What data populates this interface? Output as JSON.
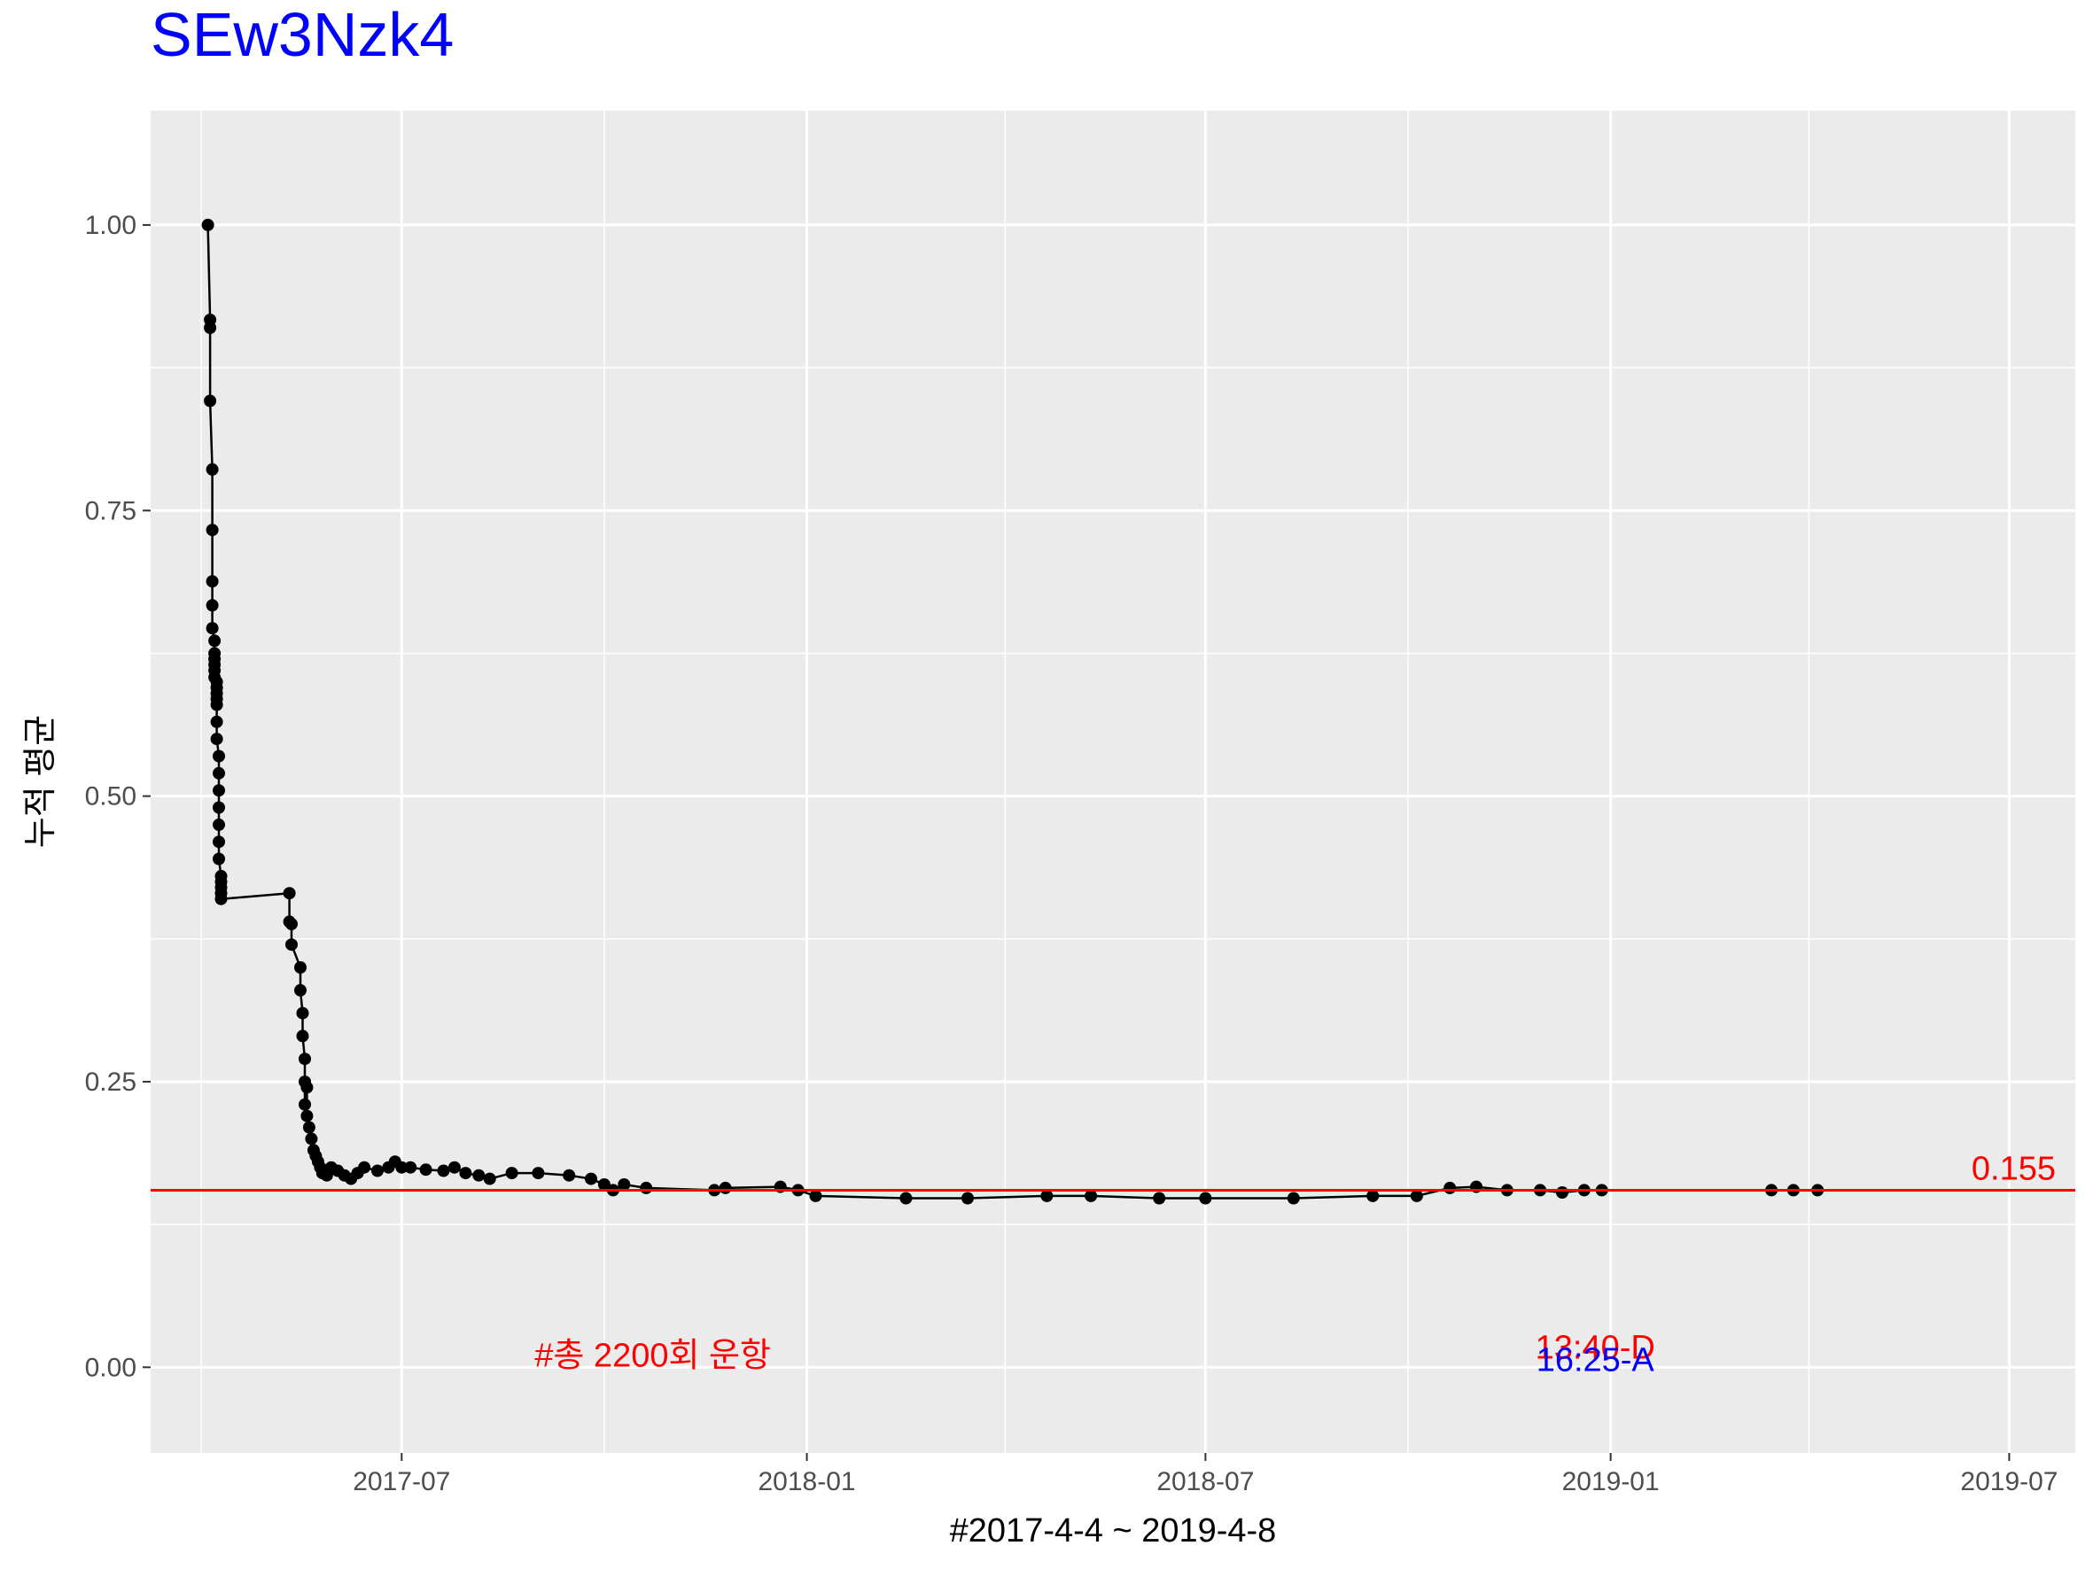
{
  "chart_data": {
    "type": "line",
    "title": "SEw3Nzk4",
    "title_color": "#0000FF",
    "xlabel": "#2017-4-4 ~ 2019-4-8",
    "ylabel": "누적 평균",
    "xlim": [
      "2017-03-09",
      "2019-07-31"
    ],
    "ylim": [
      -0.075,
      1.1
    ],
    "x_ticks": [
      {
        "date": "2017-07-01",
        "label": "2017-07"
      },
      {
        "date": "2018-01-01",
        "label": "2018-01"
      },
      {
        "date": "2018-07-01",
        "label": "2018-07"
      },
      {
        "date": "2019-01-01",
        "label": "2019-01"
      },
      {
        "date": "2019-07-01",
        "label": "2019-07"
      }
    ],
    "x_minor_ticks": [
      "2017-04-01",
      "2017-10-01",
      "2018-04-01",
      "2018-10-01",
      "2019-04-01"
    ],
    "y_ticks": [
      {
        "value": 0,
        "label": "0.00"
      },
      {
        "value": 0.25,
        "label": "0.25"
      },
      {
        "value": 0.5,
        "label": "0.50"
      },
      {
        "value": 0.75,
        "label": "0.75"
      },
      {
        "value": 1.0,
        "label": "1.00"
      }
    ],
    "y_minor_ticks": [
      0.125,
      0.375,
      0.625,
      0.875
    ],
    "grid": true,
    "line_color": "#000000",
    "point_color": "#000000",
    "reference_line": {
      "value": 0.155,
      "label": "0.155",
      "color": "#FF0000"
    },
    "series": [
      {
        "x": [
          "2017-04-04",
          "2017-04-05",
          "2017-04-05",
          "2017-04-05",
          "2017-04-06",
          "2017-04-06",
          "2017-04-06",
          "2017-04-06",
          "2017-04-06",
          "2017-04-07",
          "2017-04-07",
          "2017-04-07",
          "2017-04-07",
          "2017-04-07",
          "2017-04-07",
          "2017-04-08",
          "2017-04-08",
          "2017-04-08",
          "2017-04-08",
          "2017-04-08",
          "2017-04-08",
          "2017-04-08",
          "2017-04-09",
          "2017-04-09",
          "2017-04-09",
          "2017-04-09",
          "2017-04-09",
          "2017-04-09",
          "2017-04-09",
          "2017-04-10",
          "2017-04-10",
          "2017-04-10",
          "2017-04-10",
          "2017-04-10",
          "2017-05-11",
          "2017-05-11",
          "2017-05-12",
          "2017-05-12",
          "2017-05-16",
          "2017-05-16",
          "2017-05-17",
          "2017-05-17",
          "2017-05-18",
          "2017-05-18",
          "2017-05-18",
          "2017-05-19",
          "2017-05-19",
          "2017-05-20",
          "2017-05-21",
          "2017-05-22",
          "2017-05-23",
          "2017-05-24",
          "2017-05-25",
          "2017-05-26",
          "2017-05-28",
          "2017-05-30",
          "2017-06-02",
          "2017-06-05",
          "2017-06-08",
          "2017-06-11",
          "2017-06-14",
          "2017-06-20",
          "2017-06-25",
          "2017-06-28",
          "2017-07-01",
          "2017-07-05",
          "2017-07-12",
          "2017-07-20",
          "2017-07-25",
          "2017-07-30",
          "2017-08-05",
          "2017-08-10",
          "2017-08-20",
          "2017-09-01",
          "2017-09-15",
          "2017-09-25",
          "2017-10-01",
          "2017-10-05",
          "2017-10-10",
          "2017-10-20",
          "2017-11-20",
          "2017-11-25",
          "2017-12-20",
          "2017-12-28",
          "2018-01-05",
          "2018-02-15",
          "2018-03-15",
          "2018-04-20",
          "2018-05-10",
          "2018-06-10",
          "2018-07-01",
          "2018-08-10",
          "2018-09-15",
          "2018-10-05",
          "2018-10-20",
          "2018-11-01",
          "2018-11-15",
          "2018-11-30",
          "2018-12-10",
          "2018-12-20",
          "2018-12-28",
          "2019-03-15",
          "2019-03-25",
          "2019-04-05"
        ],
        "y": [
          1.0,
          0.917,
          0.91,
          0.846,
          0.786,
          0.733,
          0.688,
          0.667,
          0.647,
          0.636,
          0.625,
          0.62,
          0.615,
          0.61,
          0.604,
          0.6,
          0.595,
          0.59,
          0.585,
          0.58,
          0.565,
          0.55,
          0.535,
          0.52,
          0.505,
          0.49,
          0.475,
          0.46,
          0.445,
          0.43,
          0.425,
          0.42,
          0.415,
          0.41,
          0.415,
          0.39,
          0.388,
          0.37,
          0.35,
          0.33,
          0.31,
          0.29,
          0.27,
          0.25,
          0.23,
          0.245,
          0.22,
          0.21,
          0.2,
          0.19,
          0.185,
          0.18,
          0.175,
          0.17,
          0.168,
          0.175,
          0.172,
          0.168,
          0.165,
          0.17,
          0.175,
          0.172,
          0.175,
          0.18,
          0.175,
          0.175,
          0.173,
          0.172,
          0.175,
          0.17,
          0.168,
          0.165,
          0.17,
          0.17,
          0.168,
          0.165,
          0.16,
          0.155,
          0.16,
          0.157,
          0.155,
          0.157,
          0.158,
          0.155,
          0.15,
          0.148,
          0.148,
          0.15,
          0.15,
          0.148,
          0.148,
          0.148,
          0.15,
          0.15,
          0.157,
          0.158,
          0.155,
          0.155,
          0.153,
          0.155,
          0.155,
          0.155,
          0.155,
          0.155
        ]
      }
    ],
    "annotations": [
      {
        "text": "#총 2200회 운항",
        "color": "#FF0000",
        "x": "2017-10-23",
        "y": 0.01
      },
      {
        "text": "13:40-D",
        "color": "#FF0000",
        "x": "2018-12-25",
        "y": 0.017
      },
      {
        "text": "16:25-A",
        "color": "#0000FF",
        "x": "2018-12-25",
        "y": 0.006
      }
    ]
  }
}
